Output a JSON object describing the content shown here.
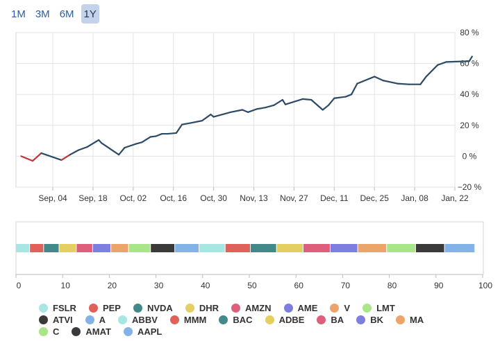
{
  "range_buttons": [
    {
      "label": "1M",
      "active": false
    },
    {
      "label": "3M",
      "active": false
    },
    {
      "label": "6M",
      "active": false
    },
    {
      "label": "1Y",
      "active": true
    }
  ],
  "chart_data": [
    {
      "type": "line",
      "title": "",
      "ylim": [
        -20,
        80
      ],
      "y_ticks": [
        -20,
        0,
        20,
        40,
        60,
        80
      ],
      "y_tick_labels": [
        "−20 %",
        "0 %",
        "20 %",
        "40 %",
        "60 %",
        "80 %"
      ],
      "x_tick_labels": [
        "Sep, 04",
        "Sep, 18",
        "Oct, 02",
        "Oct, 16",
        "Oct, 30",
        "Nov, 13",
        "Nov, 27",
        "Dec, 11",
        "Dec, 25",
        "Jan, 08",
        "Jan, 22"
      ],
      "x_tick_dates": [
        "2023-09-04",
        "2023-09-18",
        "2023-10-02",
        "2023-10-16",
        "2023-10-30",
        "2023-11-13",
        "2023-11-27",
        "2023-12-11",
        "2023-12-25",
        "2024-01-08",
        "2024-01-22"
      ],
      "grid": true,
      "series": [
        {
          "color_up": "#2c4a66",
          "color_down": "#c0343a",
          "points": [
            [
              "2023-08-24",
              0
            ],
            [
              "2023-08-28",
              -3
            ],
            [
              "2023-08-31",
              2
            ],
            [
              "2023-09-07",
              -2.5
            ],
            [
              "2023-09-10",
              1
            ],
            [
              "2023-09-13",
              4
            ],
            [
              "2023-09-16",
              6
            ],
            [
              "2023-09-20",
              10.5
            ],
            [
              "2023-09-21",
              8.5
            ],
            [
              "2023-09-27",
              1
            ],
            [
              "2023-09-29",
              5.5
            ],
            [
              "2023-10-03",
              8
            ],
            [
              "2023-10-05",
              9
            ],
            [
              "2023-10-08",
              12.5
            ],
            [
              "2023-10-10",
              13
            ],
            [
              "2023-10-12",
              14.5
            ],
            [
              "2023-10-14",
              14.5
            ],
            [
              "2023-10-17",
              15
            ],
            [
              "2023-10-19",
              20.5
            ],
            [
              "2023-10-22",
              21.5
            ],
            [
              "2023-10-26",
              23
            ],
            [
              "2023-10-29",
              27
            ],
            [
              "2023-10-30",
              25.5
            ],
            [
              "2023-11-02",
              27
            ],
            [
              "2023-11-05",
              28.5
            ],
            [
              "2023-11-09",
              30
            ],
            [
              "2023-11-11",
              28.5
            ],
            [
              "2023-11-14",
              30.5
            ],
            [
              "2023-11-17",
              31.5
            ],
            [
              "2023-11-20",
              33
            ],
            [
              "2023-11-23",
              36.5
            ],
            [
              "2023-11-24",
              33.5
            ],
            [
              "2023-11-30",
              37
            ],
            [
              "2023-12-03",
              36.5
            ],
            [
              "2023-12-07",
              30
            ],
            [
              "2023-12-09",
              33
            ],
            [
              "2023-12-11",
              37.5
            ],
            [
              "2023-12-15",
              38.5
            ],
            [
              "2023-12-17",
              40
            ],
            [
              "2023-12-19",
              47
            ],
            [
              "2023-12-25",
              51.5
            ],
            [
              "2023-12-28",
              49
            ],
            [
              "2024-01-02",
              47
            ],
            [
              "2024-01-06",
              46.5
            ],
            [
              "2024-01-10",
              46.5
            ],
            [
              "2024-01-12",
              51.5
            ],
            [
              "2024-01-16",
              59
            ],
            [
              "2024-01-19",
              61
            ],
            [
              "2024-01-27",
              61.5
            ],
            [
              "2024-01-28",
              64.5
            ]
          ]
        }
      ]
    },
    {
      "type": "bar",
      "title": "",
      "xlim": [
        0,
        100
      ],
      "x_ticks": [
        0,
        10,
        20,
        30,
        40,
        50,
        60,
        70,
        80,
        90,
        100
      ],
      "x_tick_labels": [
        "0",
        "10",
        "20",
        "30",
        "40",
        "50",
        "60",
        "70",
        "80",
        "90",
        "100"
      ],
      "stacked": true,
      "segments": [
        {
          "name": "FSLR",
          "value": 3
        },
        {
          "name": "PEP",
          "value": 3
        },
        {
          "name": "NVDA",
          "value": 3.3
        },
        {
          "name": "DHR",
          "value": 3.7
        },
        {
          "name": "AMZN",
          "value": 3.5
        },
        {
          "name": "AME",
          "value": 3.9
        },
        {
          "name": "V",
          "value": 3.8
        },
        {
          "name": "LMT",
          "value": 4.7
        },
        {
          "name": "ATVI",
          "value": 5.2
        },
        {
          "name": "A",
          "value": 5.2
        },
        {
          "name": "ABBV",
          "value": 5.6
        },
        {
          "name": "MMM",
          "value": 5.4
        },
        {
          "name": "BAC",
          "value": 5.6
        },
        {
          "name": "ADBE",
          "value": 5.7
        },
        {
          "name": "BA",
          "value": 5.8
        },
        {
          "name": "BK",
          "value": 5.9
        },
        {
          "name": "MA",
          "value": 6.2
        },
        {
          "name": "C",
          "value": 6.2
        },
        {
          "name": "AMAT",
          "value": 6.2
        },
        {
          "name": "AAPL",
          "value": 6.5
        }
      ]
    }
  ],
  "legend": {
    "rows": [
      [
        {
          "name": "FSLR",
          "color": "#a8e6e3"
        },
        {
          "name": "PEP",
          "color": "#e0605a"
        },
        {
          "name": "NVDA",
          "color": "#44898a"
        },
        {
          "name": "DHR",
          "color": "#e3cf62"
        },
        {
          "name": "AMZN",
          "color": "#dd5f7b"
        },
        {
          "name": "AME",
          "color": "#7d7fe0"
        },
        {
          "name": "V",
          "color": "#eba56b"
        },
        {
          "name": "LMT",
          "color": "#a9e689"
        }
      ],
      [
        {
          "name": "ATVI",
          "color": "#3a3a3a"
        },
        {
          "name": "A",
          "color": "#82b2e6"
        },
        {
          "name": "ABBV",
          "color": "#a8e6e3"
        },
        {
          "name": "MMM",
          "color": "#e0605a"
        },
        {
          "name": "BAC",
          "color": "#44898a"
        },
        {
          "name": "ADBE",
          "color": "#e3cf62"
        },
        {
          "name": "BA",
          "color": "#dd5f7b"
        },
        {
          "name": "BK",
          "color": "#7d7fe0"
        },
        {
          "name": "MA",
          "color": "#eba56b"
        }
      ],
      [
        {
          "name": "C",
          "color": "#a9e689"
        },
        {
          "name": "AMAT",
          "color": "#3a3a3a"
        },
        {
          "name": "AAPL",
          "color": "#82b2e6"
        }
      ]
    ]
  }
}
